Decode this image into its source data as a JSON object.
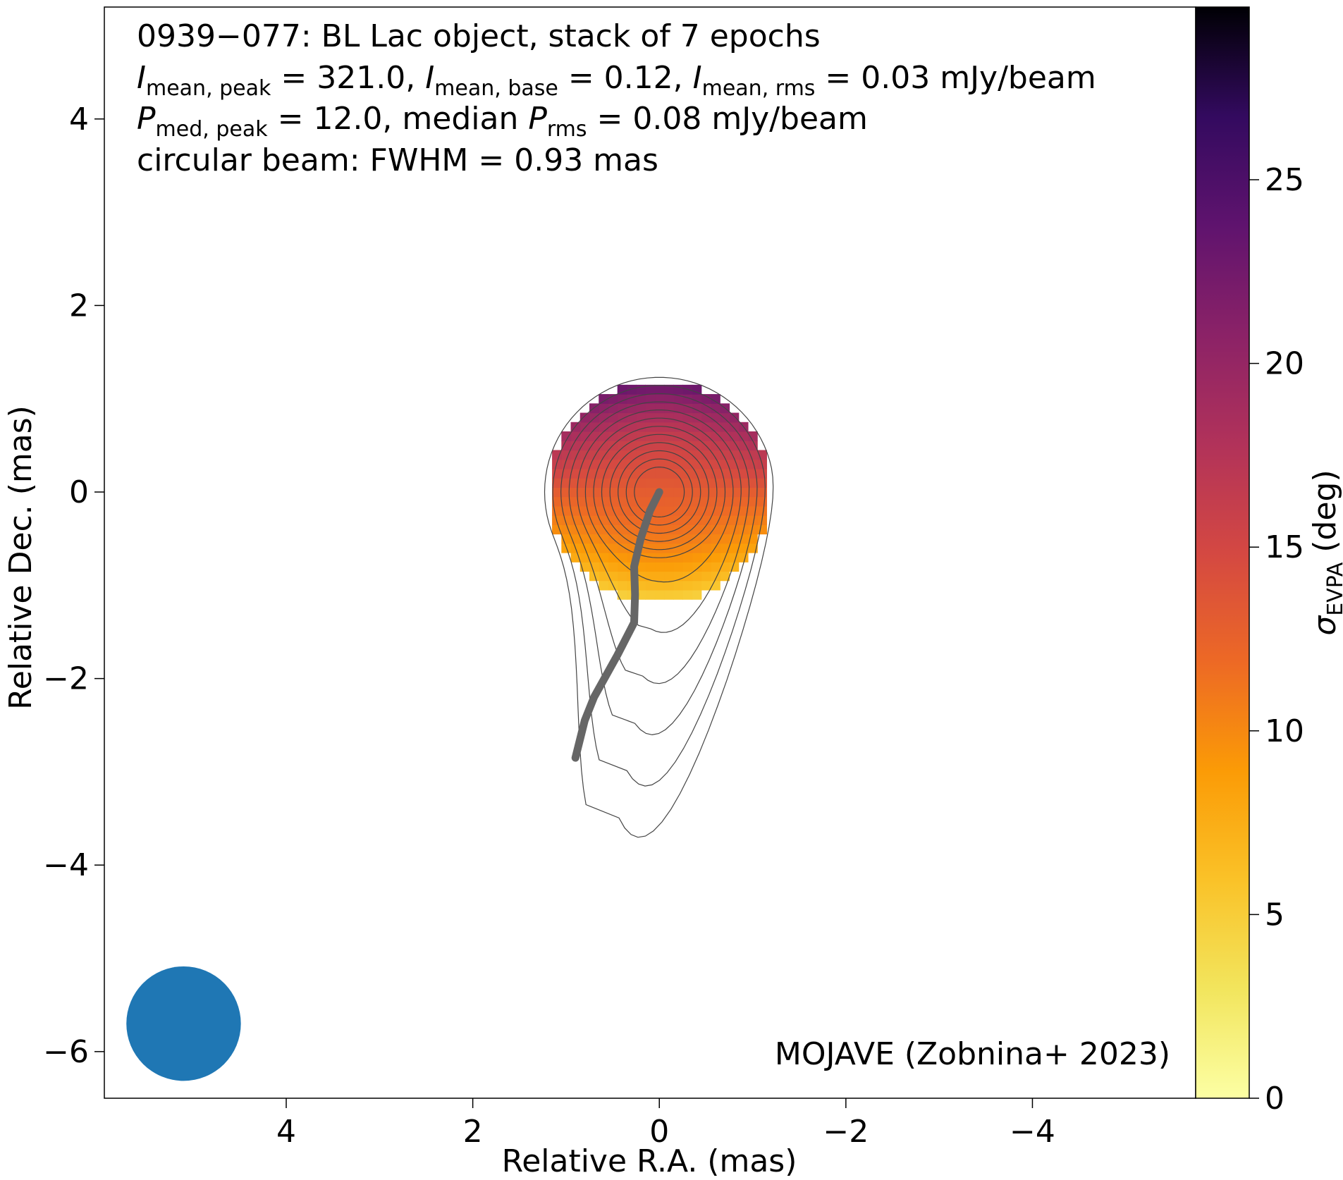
{
  "chart_data": {
    "type": "heatmap",
    "title_lines": {
      "line1": "0939−077: BL Lac object, stack of 7 epochs",
      "line2": {
        "sym": "I",
        "peak_sub": "mean, peak",
        "peak_val": " = 321.0, ",
        "base_sub": "mean, base",
        "base_val": " = 0.12, ",
        "rms_sub": "mean, rms",
        "rms_val": " = 0.03 mJy/beam"
      },
      "line3": {
        "sym": "P",
        "peak_sub": "med, peak",
        "peak_val": " = 12.0, median ",
        "rms_sub": "rms",
        "rms_val": " = 0.08 mJy/beam"
      },
      "line4": "circular beam: FWHM = 0.93 mas"
    },
    "credit": "MOJAVE (Zobnina+ 2023)",
    "xlabel": "Relative R.A. (mas)",
    "ylabel": "Relative Dec. (mas)",
    "x_ticks": [
      4,
      2,
      0,
      -2,
      -4
    ],
    "y_ticks": [
      4,
      2,
      0,
      -2,
      -4,
      -6
    ],
    "xlim": [
      5.95,
      -5.75
    ],
    "ylim": [
      -6.5,
      5.2
    ],
    "colorbar": {
      "label_sym": "σ",
      "label_sub": "EVPA",
      "label_rest": " (deg)",
      "range": [
        0,
        29.7
      ],
      "ticks": [
        0,
        5,
        10,
        15,
        20,
        25
      ],
      "colormap": "inferno_r"
    },
    "polarization_map": {
      "center": [
        0.0,
        0.0
      ],
      "radius_mas": 1.2,
      "pixel_mas": 0.1,
      "sigma_center_deg": 13,
      "sigma_edge_north_deg": 24,
      "sigma_edge_south_deg": 4
    },
    "intensity_contours": {
      "peak_mjy": 321.0,
      "base_mjy": 0.12,
      "factor": 2,
      "n_levels": 12,
      "color": "#444444"
    },
    "jet_ridgeline": {
      "color": "#666666",
      "points": [
        [
          0,
          0
        ],
        [
          0.1,
          -0.2
        ],
        [
          0.2,
          -0.5
        ],
        [
          0.27,
          -0.8
        ],
        [
          0.26,
          -1.1
        ],
        [
          0.27,
          -1.4
        ],
        [
          0.45,
          -1.75
        ],
        [
          0.7,
          -2.2
        ],
        [
          0.8,
          -2.45
        ],
        [
          0.9,
          -2.85
        ]
      ]
    },
    "beam": {
      "fwhm_mas": 0.93,
      "position": [
        5.1,
        -5.7
      ],
      "color": "#1f77b4"
    }
  }
}
